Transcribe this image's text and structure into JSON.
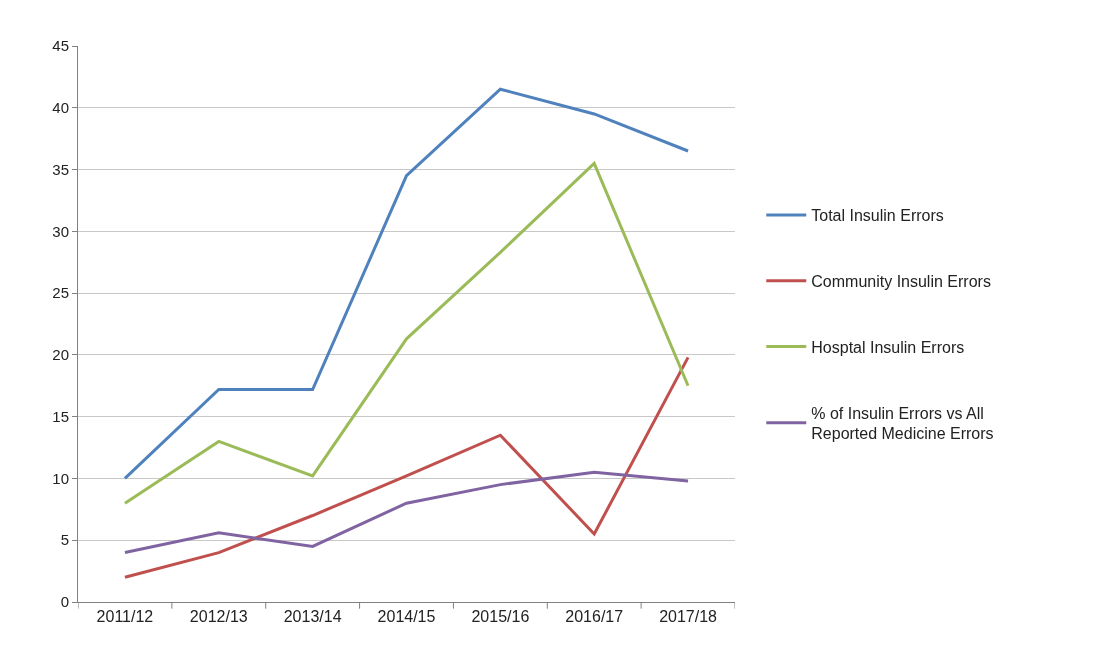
{
  "chart_data": {
    "type": "line",
    "categories": [
      "2011/12",
      "2012/13",
      "2013/14",
      "2014/15",
      "2015/16",
      "2016/17",
      "2017/18"
    ],
    "series": [
      {
        "name": "Total Insulin Errors",
        "color": "#4f81bd",
        "values": [
          10,
          17.2,
          17.2,
          34.5,
          41.5,
          39.5,
          36.5
        ]
      },
      {
        "name": "Community Insulin Errors",
        "color": "#c0504d",
        "values": [
          2,
          4,
          7,
          10.2,
          13.5,
          5.5,
          19.8
        ]
      },
      {
        "name": "Hosptal Insulin Errors",
        "color": "#9bbb59",
        "values": [
          8,
          13,
          10.2,
          21.3,
          28.3,
          35.5,
          17.5
        ]
      },
      {
        "name": "% of Insulin Errors vs All Reported Medicine Errors",
        "color": "#8064a2",
        "values": [
          4,
          5.6,
          4.5,
          8,
          9.5,
          10.5,
          9.8
        ]
      }
    ],
    "ylim": [
      0,
      45
    ],
    "yticks": [
      0,
      5,
      10,
      15,
      20,
      25,
      30,
      35,
      40,
      45
    ],
    "grid": "y",
    "legend": "right",
    "line_style": "solid"
  }
}
